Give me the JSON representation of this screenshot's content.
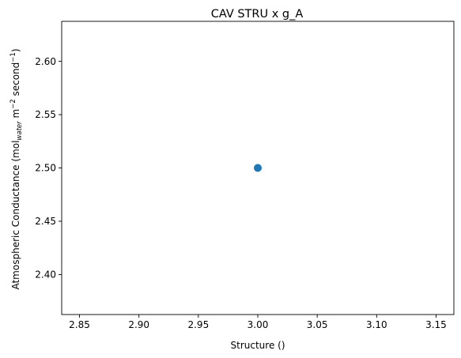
{
  "chart_data": {
    "type": "scatter",
    "title": "CAV STRU x g_A",
    "xlabel": "Structure ()",
    "ylabel": {
      "before": "Atmospheric Conductance (mol",
      "sub": "water",
      "middle": " m",
      "sup1": "−2",
      "after": " second",
      "sup2": "−1",
      "end": ")"
    },
    "xlim": [
      2.835,
      3.165
    ],
    "ylim": [
      2.3625,
      2.6375
    ],
    "xticks": [
      {
        "value": 2.85,
        "label": "2.85"
      },
      {
        "value": 2.9,
        "label": "2.90"
      },
      {
        "value": 2.95,
        "label": "2.95"
      },
      {
        "value": 3.0,
        "label": "3.00"
      },
      {
        "value": 3.05,
        "label": "3.05"
      },
      {
        "value": 3.1,
        "label": "3.10"
      },
      {
        "value": 3.15,
        "label": "3.15"
      }
    ],
    "yticks": [
      {
        "value": 2.4,
        "label": "2.40"
      },
      {
        "value": 2.45,
        "label": "2.45"
      },
      {
        "value": 2.5,
        "label": "2.50"
      },
      {
        "value": 2.55,
        "label": "2.55"
      },
      {
        "value": 2.6,
        "label": "2.60"
      }
    ],
    "series": [
      {
        "color": "#1f77b4",
        "points": [
          {
            "x": 3.0,
            "y": 2.5
          }
        ]
      }
    ],
    "grid": false,
    "legend": false
  }
}
